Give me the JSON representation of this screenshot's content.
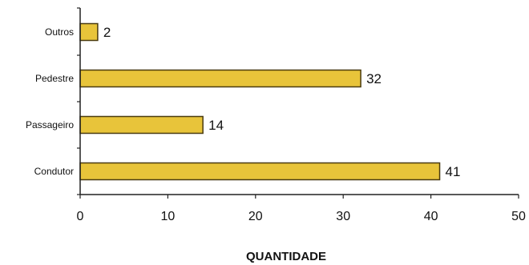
{
  "chart_data": {
    "type": "bar",
    "orientation": "horizontal",
    "categories": [
      "Outros",
      "Pedestre",
      "Passageiro",
      "Condutor"
    ],
    "values": [
      2,
      32,
      14,
      41
    ],
    "xlabel": "QUANTIDADE",
    "ylabel": "",
    "title": "",
    "xlim": [
      0,
      50
    ],
    "xticks": [
      "0",
      "10",
      "20",
      "30",
      "40",
      "50"
    ],
    "grid": false,
    "legend": "none",
    "colors": {
      "bar_fill": "#E8C43A",
      "bar_stroke": "#4A3B10",
      "axis": "#222222",
      "background": "#ffffff"
    }
  }
}
